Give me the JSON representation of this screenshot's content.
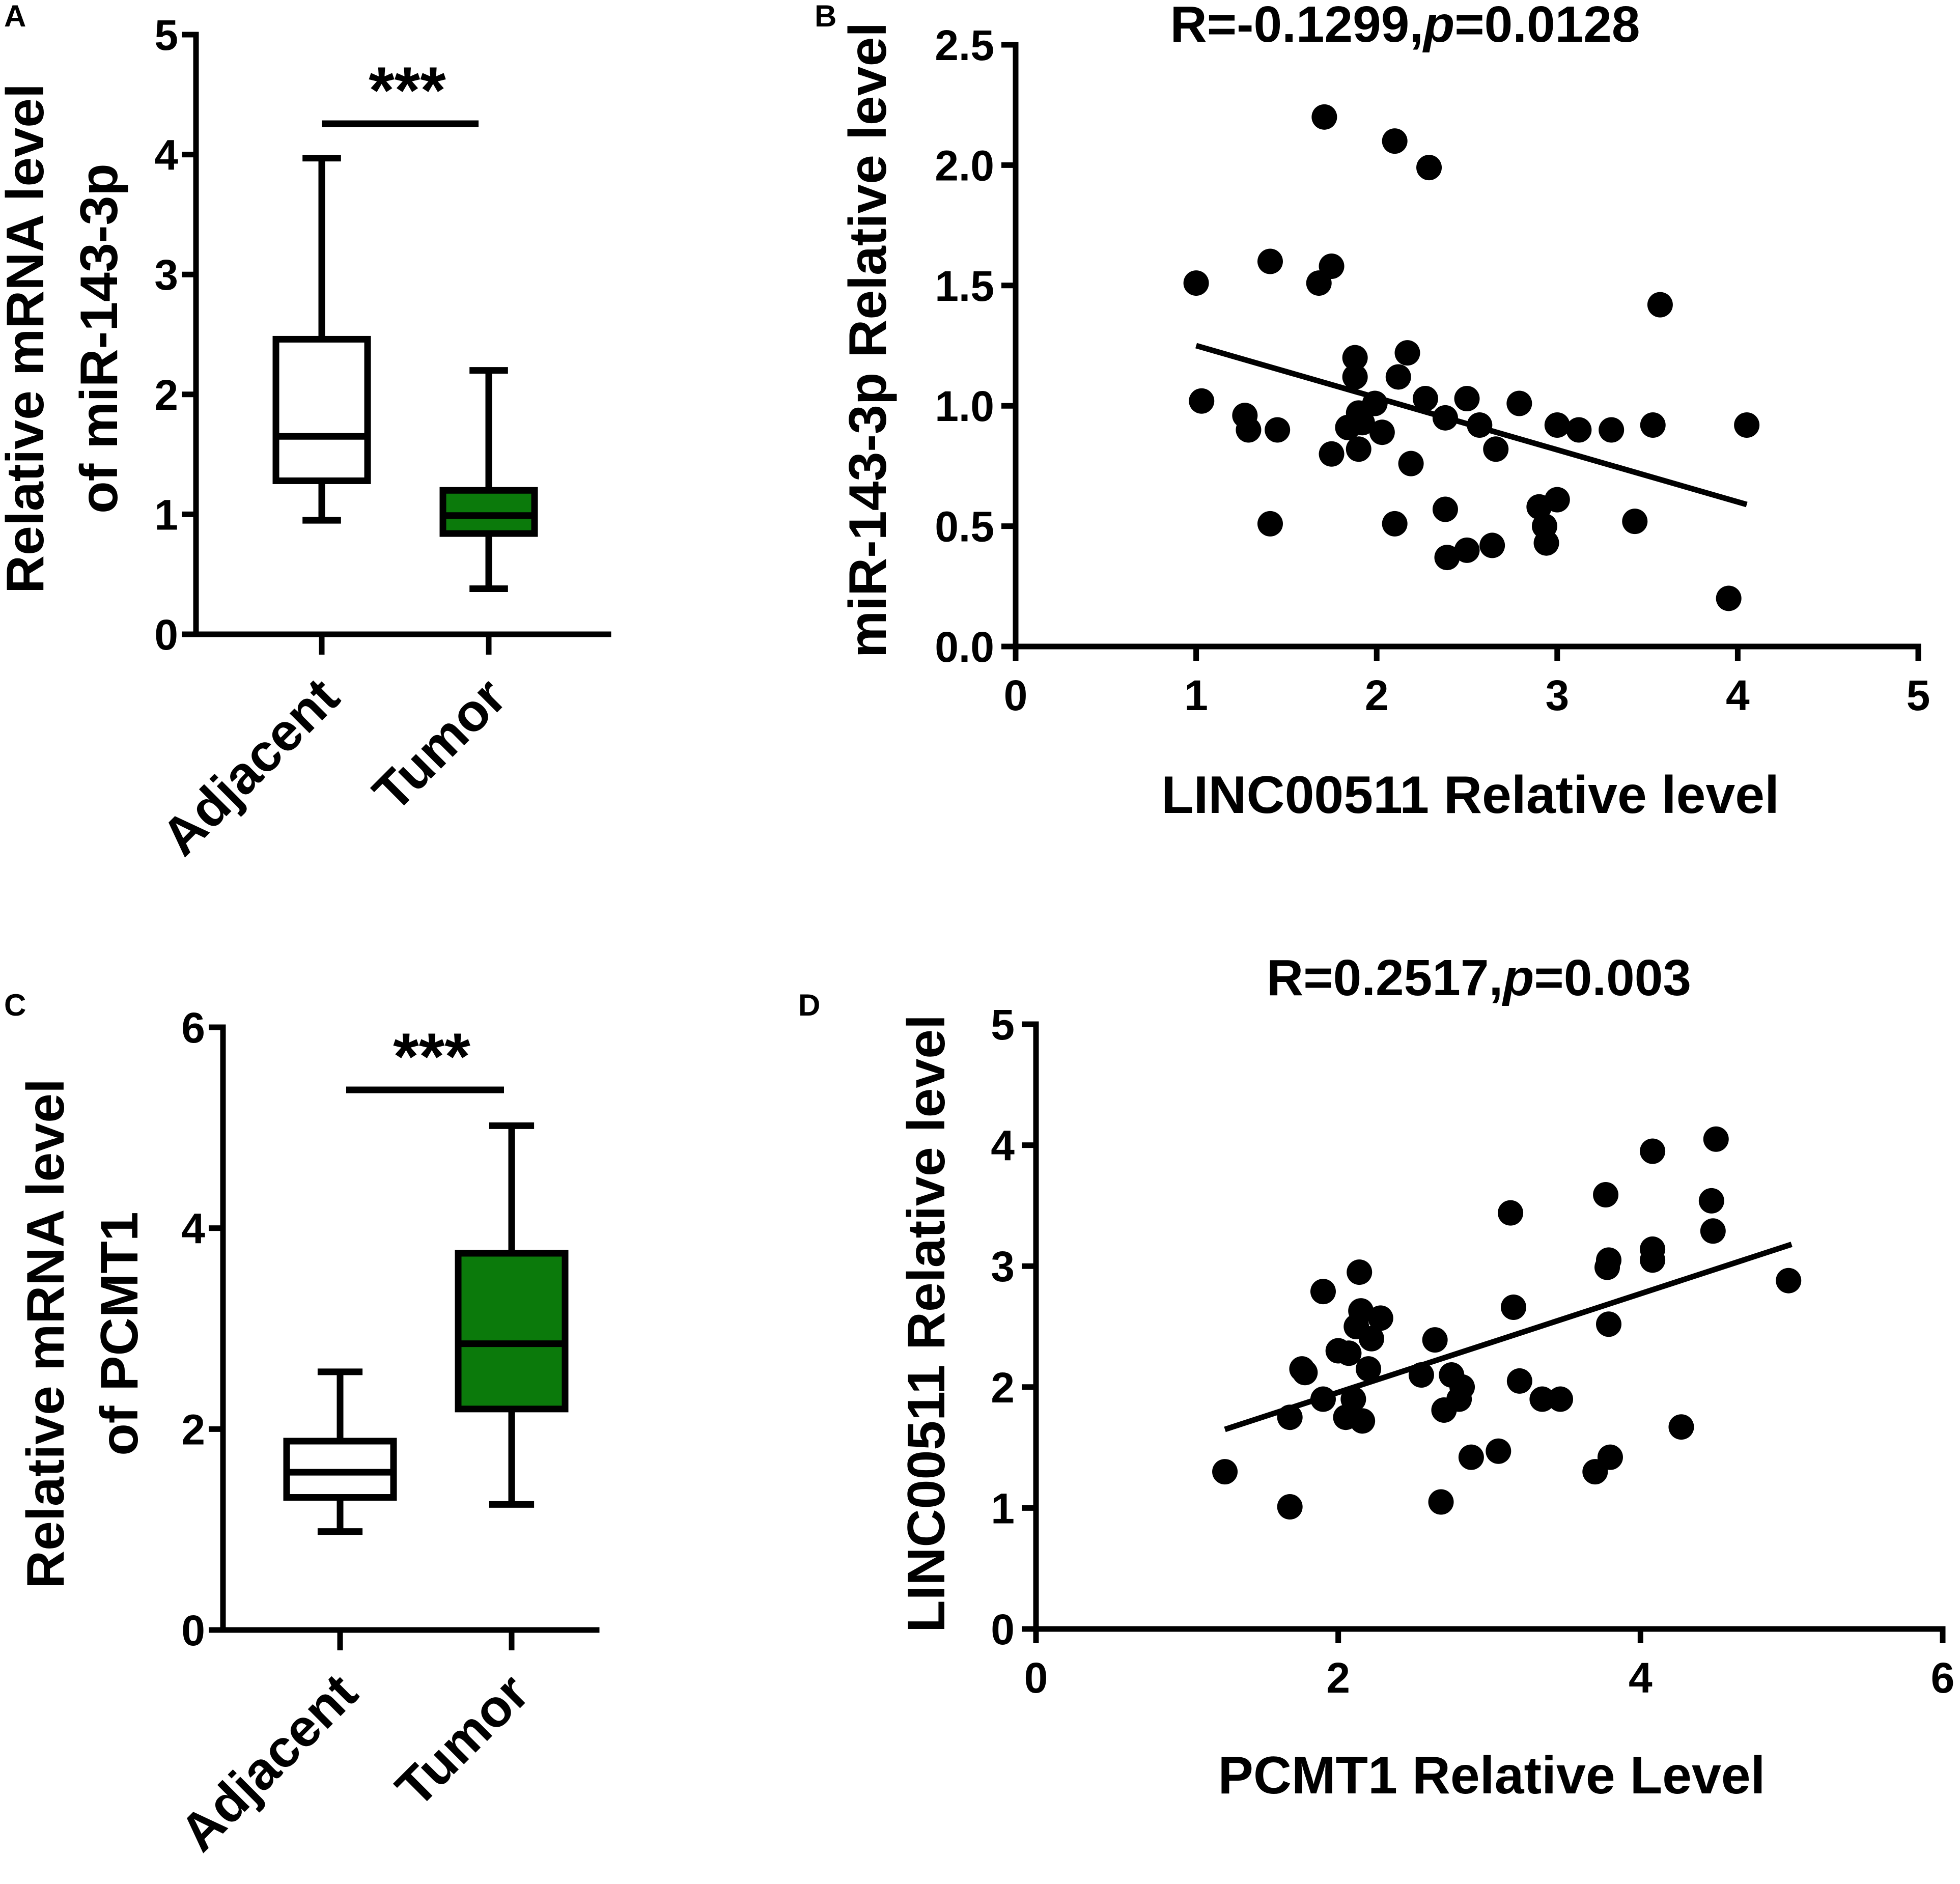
{
  "chart_data": [
    {
      "panel": "A",
      "type": "box",
      "ylabel_lines": [
        "Relative mRNA level",
        "of miR-143-3p"
      ],
      "ylim": [
        0,
        5
      ],
      "yticks": [
        "0",
        "1",
        "2",
        "3",
        "4",
        "5"
      ],
      "categories": [
        "Adjacent",
        "Tumor"
      ],
      "boxes": [
        {
          "name": "Adjacent",
          "min": 0.95,
          "q1": 1.28,
          "median": 1.65,
          "q3": 2.46,
          "max": 3.97,
          "color": "#ffffff"
        },
        {
          "name": "Tumor",
          "min": 0.38,
          "q1": 0.84,
          "median": 0.99,
          "q3": 1.2,
          "max": 2.2,
          "color": "#0b7a0b"
        }
      ],
      "significance": "***"
    },
    {
      "panel": "B",
      "type": "scatter",
      "title_prefix": "R=-0.1299,",
      "title_p": "p",
      "title_suffix": "=0.0128",
      "xlabel": "LINC00511 Relative level",
      "ylabel": "miR-143-3p Relative level",
      "xlim": [
        0,
        5
      ],
      "ylim": [
        0,
        2.5
      ],
      "xticks": [
        "0",
        "1",
        "2",
        "3",
        "4",
        "5"
      ],
      "yticks": [
        "0.0",
        "0.5",
        "1.0",
        "1.5",
        "2.0",
        "2.5"
      ],
      "trend": {
        "x": [
          1.0,
          4.05
        ],
        "y": [
          1.25,
          0.59
        ]
      },
      "points": [
        [
          1.0,
          1.51
        ],
        [
          1.03,
          1.02
        ],
        [
          1.27,
          0.96
        ],
        [
          1.29,
          0.9
        ],
        [
          1.41,
          1.6
        ],
        [
          1.45,
          0.9
        ],
        [
          1.41,
          0.51
        ],
        [
          1.71,
          2.2
        ],
        [
          1.68,
          1.51
        ],
        [
          1.75,
          1.58
        ],
        [
          1.75,
          0.8
        ],
        [
          1.84,
          0.91
        ],
        [
          1.88,
          1.2
        ],
        [
          1.88,
          1.12
        ],
        [
          1.9,
          0.97
        ],
        [
          1.9,
          0.82
        ],
        [
          1.92,
          0.93
        ],
        [
          1.99,
          1.01
        ],
        [
          2.03,
          0.89
        ],
        [
          2.1,
          2.1
        ],
        [
          2.12,
          1.12
        ],
        [
          2.17,
          1.22
        ],
        [
          2.19,
          0.76
        ],
        [
          2.1,
          0.51
        ],
        [
          2.29,
          1.99
        ],
        [
          2.27,
          1.03
        ],
        [
          2.38,
          0.95
        ],
        [
          2.38,
          0.57
        ],
        [
          2.39,
          0.37
        ],
        [
          2.5,
          0.4
        ],
        [
          2.5,
          1.03
        ],
        [
          2.57,
          0.92
        ],
        [
          2.64,
          0.42
        ],
        [
          2.66,
          0.82
        ],
        [
          2.79,
          1.01
        ],
        [
          2.9,
          0.58
        ],
        [
          2.93,
          0.5
        ],
        [
          2.94,
          0.43
        ],
        [
          3.0,
          0.61
        ],
        [
          3.0,
          0.92
        ],
        [
          3.12,
          0.9
        ],
        [
          3.3,
          0.9
        ],
        [
          3.43,
          0.52
        ],
        [
          3.53,
          0.92
        ],
        [
          3.57,
          1.42
        ],
        [
          3.95,
          0.2
        ],
        [
          4.05,
          0.92
        ]
      ]
    },
    {
      "panel": "C",
      "type": "box",
      "ylabel_lines": [
        "Relative mRNA level",
        "of PCMT1"
      ],
      "ylim": [
        0,
        6
      ],
      "yticks": [
        "0",
        "2",
        "4",
        "6"
      ],
      "categories": [
        "Adjacent",
        "Tumor"
      ],
      "boxes": [
        {
          "name": "Adjacent",
          "min": 0.98,
          "q1": 1.32,
          "median": 1.57,
          "q3": 1.88,
          "max": 2.57,
          "color": "#ffffff"
        },
        {
          "name": "Tumor",
          "min": 1.25,
          "q1": 2.2,
          "median": 2.85,
          "q3": 3.75,
          "max": 5.02,
          "color": "#0b7a0b"
        }
      ],
      "significance": "***"
    },
    {
      "panel": "D",
      "type": "scatter",
      "title_prefix": "R=0.2517,",
      "title_p": "p",
      "title_suffix": "=0.003",
      "xlabel": "PCMT1 Relative Level",
      "ylabel": "LINC00511 Relative level",
      "xlim": [
        0,
        6
      ],
      "ylim": [
        0,
        5
      ],
      "xticks": [
        "0",
        "2",
        "4",
        "6"
      ],
      "yticks": [
        "0",
        "1",
        "2",
        "3",
        "4",
        "5"
      ],
      "trend": {
        "x": [
          1.25,
          5.0
        ],
        "y": [
          1.65,
          3.18
        ]
      },
      "points": [
        [
          1.25,
          1.3
        ],
        [
          1.68,
          1.01
        ],
        [
          1.68,
          1.75
        ],
        [
          1.76,
          2.15
        ],
        [
          1.78,
          2.12
        ],
        [
          1.9,
          2.79
        ],
        [
          1.9,
          1.9
        ],
        [
          2.0,
          2.3
        ],
        [
          2.05,
          1.75
        ],
        [
          2.07,
          2.28
        ],
        [
          2.1,
          1.9
        ],
        [
          2.12,
          2.5
        ],
        [
          2.15,
          2.63
        ],
        [
          2.14,
          2.95
        ],
        [
          2.16,
          1.72
        ],
        [
          2.2,
          2.15
        ],
        [
          2.22,
          2.4
        ],
        [
          2.28,
          2.57
        ],
        [
          2.55,
          2.1
        ],
        [
          2.64,
          2.39
        ],
        [
          2.68,
          1.05
        ],
        [
          2.7,
          1.81
        ],
        [
          2.75,
          2.1
        ],
        [
          2.8,
          1.9
        ],
        [
          2.82,
          2.0
        ],
        [
          2.88,
          1.42
        ],
        [
          3.06,
          1.47
        ],
        [
          3.14,
          3.44
        ],
        [
          3.16,
          2.66
        ],
        [
          3.2,
          2.05
        ],
        [
          3.35,
          1.9
        ],
        [
          3.47,
          1.9
        ],
        [
          3.7,
          1.3
        ],
        [
          3.77,
          3.59
        ],
        [
          3.78,
          2.99
        ],
        [
          3.79,
          3.05
        ],
        [
          3.79,
          2.52
        ],
        [
          3.8,
          1.42
        ],
        [
          4.08,
          3.05
        ],
        [
          4.08,
          3.14
        ],
        [
          4.08,
          3.95
        ],
        [
          4.27,
          1.67
        ],
        [
          4.47,
          3.54
        ],
        [
          4.48,
          3.29
        ],
        [
          4.5,
          4.05
        ],
        [
          4.98,
          2.88
        ]
      ]
    }
  ]
}
